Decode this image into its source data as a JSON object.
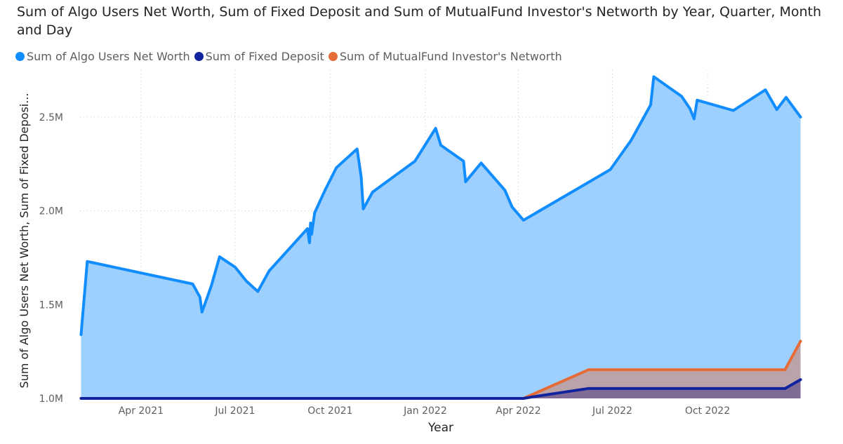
{
  "chart_data": {
    "type": "area",
    "title": "Sum of Algo Users Net Worth, Sum of Fixed Deposit and Sum of MutualFund Investor's Networth by Year, Quarter, Month and Day",
    "xlabel": "Year",
    "ylabel": "Sum of Algo Users Net Worth, Sum of Fixed Deposi...",
    "xlim": [
      "2021-02-01",
      "2022-12-31"
    ],
    "ylim": [
      1000000,
      2750000
    ],
    "y_ticks": [
      {
        "value": 1000000,
        "label": "1.0M"
      },
      {
        "value": 1500000,
        "label": "1.5M"
      },
      {
        "value": 2000000,
        "label": "2.0M"
      },
      {
        "value": 2500000,
        "label": "2.5M"
      }
    ],
    "x_ticks": [
      {
        "date": "2021-04-01",
        "label": "Apr 2021"
      },
      {
        "date": "2021-07-01",
        "label": "Jul 2021"
      },
      {
        "date": "2021-10-01",
        "label": "Oct 2021"
      },
      {
        "date": "2022-01-01",
        "label": "Jan 2022"
      },
      {
        "date": "2022-04-01",
        "label": "Apr 2022"
      },
      {
        "date": "2022-07-01",
        "label": "Jul 2022"
      },
      {
        "date": "2022-10-01",
        "label": "Oct 2022"
      }
    ],
    "grid": true,
    "legend_position": "top-left",
    "series": [
      {
        "name": "Sum of Algo Users Net Worth",
        "color": "#118DFF",
        "fill": "#9DD0FE",
        "points": [
          [
            "2021-02-02",
            1340000
          ],
          [
            "2021-02-08",
            1730000
          ],
          [
            "2021-05-21",
            1610000
          ],
          [
            "2021-05-28",
            1540000
          ],
          [
            "2021-05-30",
            1460000
          ],
          [
            "2021-06-08",
            1600000
          ],
          [
            "2021-06-16",
            1755000
          ],
          [
            "2021-07-01",
            1700000
          ],
          [
            "2021-07-12",
            1625000
          ],
          [
            "2021-07-23",
            1570000
          ],
          [
            "2021-08-03",
            1680000
          ],
          [
            "2021-09-09",
            1905000
          ],
          [
            "2021-09-11",
            1830000
          ],
          [
            "2021-09-12",
            1935000
          ],
          [
            "2021-09-13",
            1875000
          ],
          [
            "2021-09-16",
            1990000
          ],
          [
            "2021-09-26",
            2110000
          ],
          [
            "2021-10-07",
            2230000
          ],
          [
            "2021-10-27",
            2330000
          ],
          [
            "2021-10-31",
            2180000
          ],
          [
            "2021-11-02",
            2010000
          ],
          [
            "2021-11-11",
            2100000
          ],
          [
            "2021-12-22",
            2265000
          ],
          [
            "2022-01-11",
            2440000
          ],
          [
            "2022-01-16",
            2350000
          ],
          [
            "2022-02-07",
            2265000
          ],
          [
            "2022-02-09",
            2155000
          ],
          [
            "2022-02-24",
            2255000
          ],
          [
            "2022-03-19",
            2110000
          ],
          [
            "2022-03-26",
            2020000
          ],
          [
            "2022-04-06",
            1950000
          ],
          [
            "2022-06-29",
            2220000
          ],
          [
            "2022-07-19",
            2375000
          ],
          [
            "2022-08-07",
            2565000
          ],
          [
            "2022-08-10",
            2715000
          ],
          [
            "2022-09-06",
            2610000
          ],
          [
            "2022-09-14",
            2545000
          ],
          [
            "2022-09-18",
            2490000
          ],
          [
            "2022-09-21",
            2590000
          ],
          [
            "2022-10-26",
            2535000
          ],
          [
            "2022-11-26",
            2645000
          ],
          [
            "2022-12-07",
            2540000
          ],
          [
            "2022-12-16",
            2605000
          ],
          [
            "2022-12-30",
            2500000
          ]
        ]
      },
      {
        "name": "Sum of Fixed Deposit",
        "color": "#12239E",
        "fill": "#7F6B95",
        "points": [
          [
            "2021-02-02",
            1000000
          ],
          [
            "2022-04-06",
            1000000
          ],
          [
            "2022-04-19",
            1012000
          ],
          [
            "2022-06-08",
            1053000
          ],
          [
            "2022-12-15",
            1053000
          ],
          [
            "2022-12-30",
            1100000
          ]
        ]
      },
      {
        "name": "Sum of MutualFund Investor's Networth",
        "color": "#E66C37",
        "fill": "#BAA3A9",
        "points": [
          [
            "2021-02-02",
            1000000
          ],
          [
            "2022-04-06",
            1000000
          ],
          [
            "2022-06-08",
            1153000
          ],
          [
            "2022-12-15",
            1153000
          ],
          [
            "2022-12-30",
            1305000
          ]
        ]
      }
    ]
  }
}
